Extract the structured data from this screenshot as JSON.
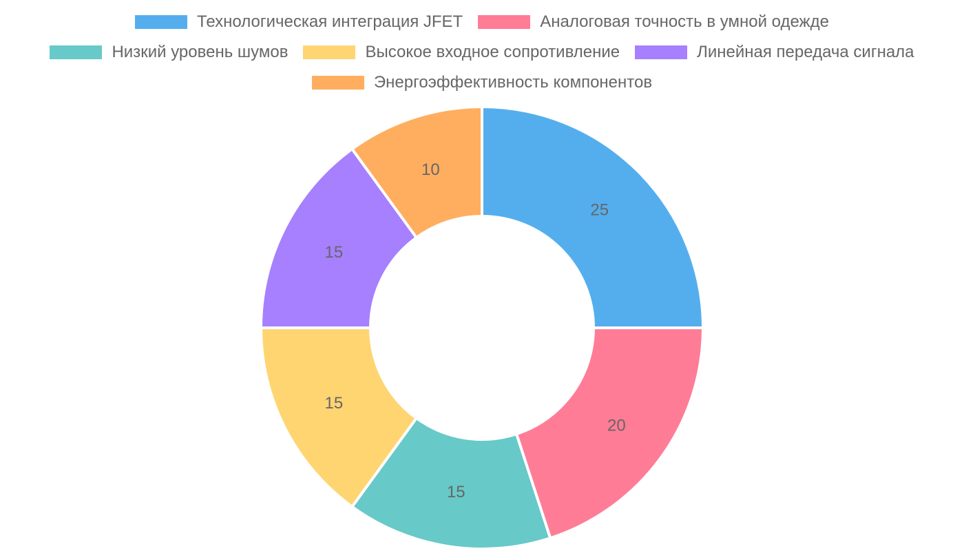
{
  "chart_data": {
    "type": "pie",
    "variant": "doughnut",
    "categories": [
      "Технологическая интеграция JFET",
      "Аналоговая точность в умной одежде",
      "Низкий уровень шумов",
      "Высокое входное сопротивление",
      "Линейная передача сигнала",
      "Энергоэффективность компонентов"
    ],
    "values": [
      25,
      20,
      15,
      15,
      15,
      10
    ],
    "colors": [
      "#54AEEE",
      "#FF7C97",
      "#67C9C8",
      "#FFD572",
      "#A680FE",
      "#FFAE5F"
    ],
    "legend_position": "top",
    "data_labels": true
  },
  "legend": {
    "items": [
      {
        "label": "Технологическая интеграция JFET",
        "color": "#54AEEE"
      },
      {
        "label": "Аналоговая точность в умной одежде",
        "color": "#FF7C97"
      },
      {
        "label": "Низкий уровень шумов",
        "color": "#67C9C8"
      },
      {
        "label": "Высокое входное сопротивление",
        "color": "#FFD572"
      },
      {
        "label": "Линейная передача сигнала",
        "color": "#A680FE"
      },
      {
        "label": "Энергоэффективность компонентов",
        "color": "#FFAE5F"
      }
    ]
  }
}
